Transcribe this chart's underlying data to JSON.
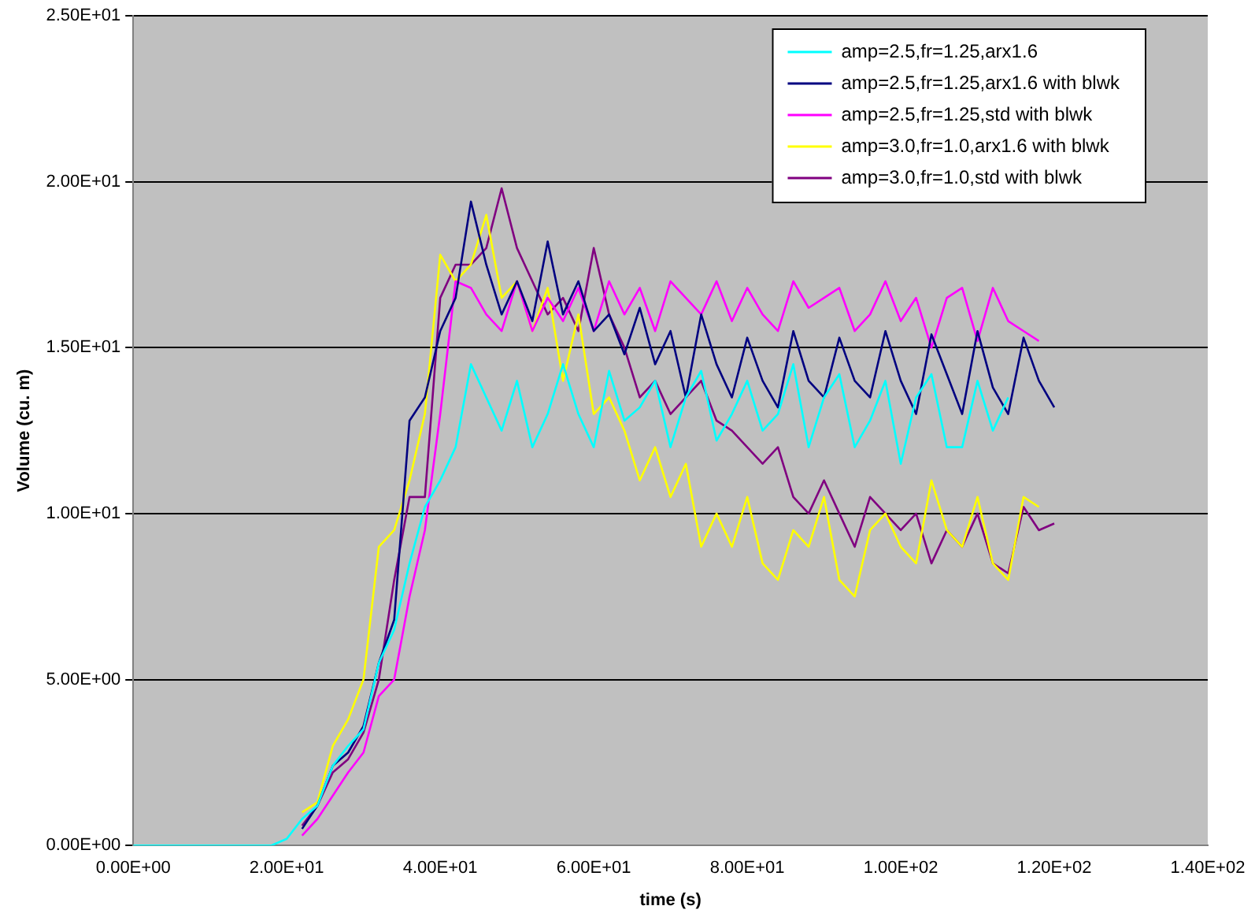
{
  "chart_data": {
    "type": "line",
    "xlabel": "time (s)",
    "ylabel": "Volume (cu. m)",
    "xlim": [
      0,
      140
    ],
    "ylim": [
      0,
      25
    ],
    "xticks": [
      {
        "value": 0,
        "label": "0.00E+00"
      },
      {
        "value": 20,
        "label": "2.00E+01"
      },
      {
        "value": 40,
        "label": "4.00E+01"
      },
      {
        "value": 60,
        "label": "6.00E+01"
      },
      {
        "value": 80,
        "label": "8.00E+01"
      },
      {
        "value": 100,
        "label": "1.00E+02"
      },
      {
        "value": 120,
        "label": "1.20E+02"
      },
      {
        "value": 140,
        "label": "1.40E+02"
      }
    ],
    "yticks": [
      {
        "value": 0,
        "label": "0.00E+00"
      },
      {
        "value": 5,
        "label": "5.00E+00"
      },
      {
        "value": 10,
        "label": "1.00E+01"
      },
      {
        "value": 15,
        "label": "1.50E+01"
      },
      {
        "value": 20,
        "label": "2.00E+01"
      },
      {
        "value": 25,
        "label": "2.50E+01"
      }
    ],
    "grid": "y",
    "legend": "top right",
    "marker": "none",
    "series": [
      {
        "name": "amp=2.5,fr=1.25,arx1.6",
        "color": "#00ffff",
        "x": [
          0,
          2,
          4,
          6,
          8,
          10,
          12,
          14,
          16,
          18,
          20,
          22,
          24,
          26,
          28,
          30,
          32,
          34,
          36,
          38,
          40,
          42,
          44,
          46,
          48,
          50,
          52,
          54,
          56,
          58,
          60,
          62,
          64,
          66,
          68,
          70,
          72,
          74,
          76,
          78,
          80,
          82,
          84,
          86,
          88,
          90,
          92,
          94,
          96,
          98,
          100,
          102,
          104,
          106,
          108,
          110,
          112,
          114
        ],
        "values": [
          0,
          0,
          0,
          0,
          0,
          0,
          0,
          0,
          0,
          0,
          0.2,
          0.8,
          1.2,
          2.4,
          3.0,
          3.5,
          5.5,
          6.5,
          8.5,
          10.2,
          11.0,
          12.0,
          14.5,
          13.5,
          12.5,
          14.0,
          12.0,
          13.0,
          14.5,
          13.0,
          12.0,
          14.3,
          12.8,
          13.2,
          14.0,
          12.0,
          13.5,
          14.3,
          12.2,
          13.0,
          14.0,
          12.5,
          13.0,
          14.5,
          12.0,
          13.5,
          14.2,
          12.0,
          12.8,
          14.0,
          11.5,
          13.5,
          14.2,
          12.0,
          12.0,
          14.0,
          12.5,
          13.5
        ]
      },
      {
        "name": "amp=2.5,fr=1.25,arx1.6 with blwk",
        "color": "#000080",
        "x": [
          22,
          24,
          26,
          28,
          30,
          32,
          34,
          36,
          38,
          40,
          42,
          44,
          46,
          48,
          50,
          52,
          54,
          56,
          58,
          60,
          62,
          64,
          66,
          68,
          70,
          72,
          74,
          76,
          78,
          80,
          82,
          84,
          86,
          88,
          90,
          92,
          94,
          96,
          98,
          100,
          102,
          104,
          106,
          108,
          110,
          112,
          114,
          116,
          118,
          120
        ],
        "values": [
          0.5,
          1.2,
          2.4,
          2.8,
          3.6,
          5.5,
          6.8,
          12.8,
          13.5,
          15.5,
          16.5,
          19.4,
          17.5,
          16.0,
          17.0,
          15.8,
          18.2,
          16.0,
          17.0,
          15.5,
          16.0,
          14.8,
          16.2,
          14.5,
          15.5,
          13.5,
          16.0,
          14.5,
          13.5,
          15.3,
          14.0,
          13.2,
          15.5,
          14.0,
          13.5,
          15.3,
          14.0,
          13.5,
          15.5,
          14.0,
          13.0,
          15.4,
          14.2,
          13.0,
          15.5,
          13.8,
          13.0,
          15.3,
          14.0,
          13.2
        ]
      },
      {
        "name": "amp=2.5,fr=1.25,std with blwk",
        "color": "#ff00ff",
        "x": [
          22,
          24,
          26,
          28,
          30,
          32,
          34,
          36,
          38,
          40,
          42,
          44,
          46,
          48,
          50,
          52,
          54,
          56,
          58,
          60,
          62,
          64,
          66,
          68,
          70,
          72,
          74,
          76,
          78,
          80,
          82,
          84,
          86,
          88,
          90,
          92,
          94,
          96,
          98,
          100,
          102,
          104,
          106,
          108,
          110,
          112,
          114,
          116,
          118
        ],
        "values": [
          0.3,
          0.8,
          1.5,
          2.2,
          2.8,
          4.5,
          5.0,
          7.5,
          9.5,
          13.0,
          17.0,
          16.8,
          16.0,
          15.5,
          17.0,
          15.5,
          16.5,
          15.8,
          16.8,
          15.5,
          17.0,
          16.0,
          16.8,
          15.5,
          17.0,
          16.5,
          16.0,
          17.0,
          15.8,
          16.8,
          16.0,
          15.5,
          17.0,
          16.2,
          16.5,
          16.8,
          15.5,
          16.0,
          17.0,
          15.8,
          16.5,
          15.0,
          16.5,
          16.8,
          15.2,
          16.8,
          15.8,
          15.5,
          15.2
        ]
      },
      {
        "name": "amp=3.0,fr=1.0,arx1.6 with blwk",
        "color": "#ffff00",
        "x": [
          22,
          24,
          26,
          28,
          30,
          32,
          34,
          36,
          38,
          40,
          42,
          44,
          46,
          48,
          50,
          52,
          54,
          56,
          58,
          60,
          62,
          64,
          66,
          68,
          70,
          72,
          74,
          76,
          78,
          80,
          82,
          84,
          86,
          88,
          90,
          92,
          94,
          96,
          98,
          100,
          102,
          104,
          106,
          108,
          110,
          112,
          114,
          116,
          118
        ],
        "values": [
          1.0,
          1.3,
          3.0,
          3.8,
          5.0,
          9.0,
          9.5,
          11.0,
          13.0,
          17.8,
          17.0,
          17.5,
          19.0,
          16.5,
          17.0,
          15.5,
          16.8,
          14.0,
          16.0,
          13.0,
          13.5,
          12.5,
          11.0,
          12.0,
          10.5,
          11.5,
          9.0,
          10.0,
          9.0,
          10.5,
          8.5,
          8.0,
          9.5,
          9.0,
          10.5,
          8.0,
          7.5,
          9.5,
          10.0,
          9.0,
          8.5,
          11.0,
          9.5,
          9.0,
          10.5,
          8.5,
          8.0,
          10.5,
          10.2
        ]
      },
      {
        "name": "amp=3.0,fr=1.0,std with blwk",
        "color": "#800080",
        "x": [
          22,
          24,
          26,
          28,
          30,
          32,
          34,
          36,
          38,
          40,
          42,
          44,
          46,
          48,
          50,
          52,
          54,
          56,
          58,
          60,
          62,
          64,
          66,
          68,
          70,
          72,
          74,
          76,
          78,
          80,
          82,
          84,
          86,
          88,
          90,
          92,
          94,
          96,
          98,
          100,
          102,
          104,
          106,
          108,
          110,
          112,
          114,
          116,
          118,
          120
        ],
        "values": [
          0.6,
          1.2,
          2.2,
          2.6,
          3.4,
          5.0,
          8.0,
          10.5,
          10.5,
          16.5,
          17.5,
          17.5,
          18.0,
          19.8,
          18.0,
          17.0,
          16.0,
          16.5,
          15.5,
          18.0,
          16.0,
          15.0,
          13.5,
          14.0,
          13.0,
          13.5,
          14.0,
          12.8,
          12.5,
          12.0,
          11.5,
          12.0,
          10.5,
          10.0,
          11.0,
          10.0,
          9.0,
          10.5,
          10.0,
          9.5,
          10.0,
          8.5,
          9.5,
          9.0,
          10.0,
          8.5,
          8.2,
          10.2,
          9.5,
          9.7
        ]
      }
    ]
  }
}
